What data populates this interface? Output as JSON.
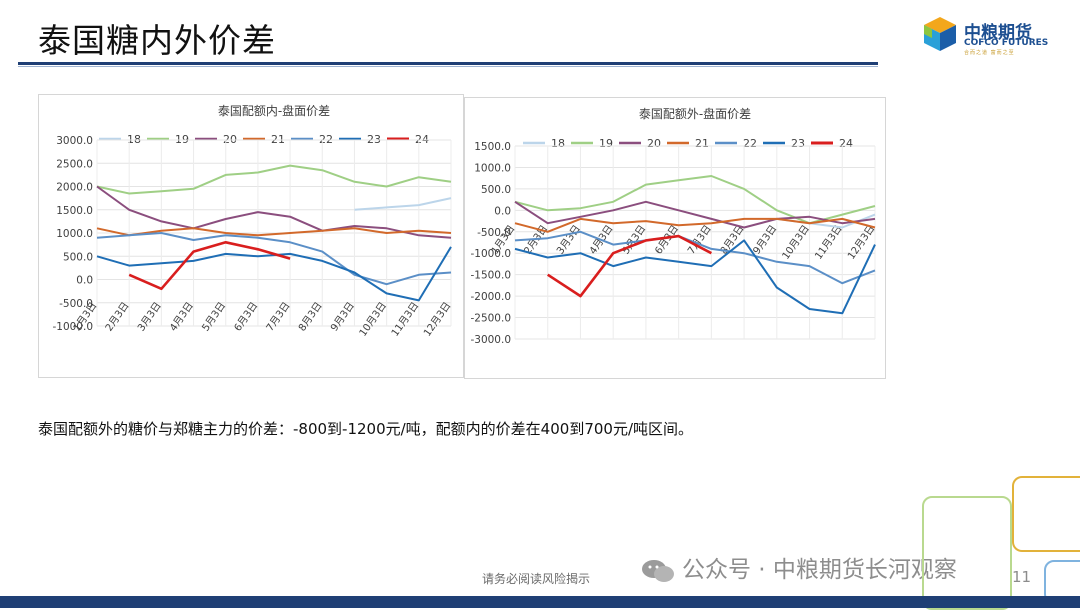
{
  "header": {
    "title": "泰国糖内外价差"
  },
  "logo": {
    "cn": "中粮期货",
    "en": "COFCO FUTURES",
    "slogan": "合而之道 富而之至"
  },
  "charts": [
    {
      "title": "泰国配额内-盘面价差",
      "legend": [
        "18",
        "19",
        "20",
        "21",
        "22",
        "23",
        "24"
      ],
      "y_ticks": [
        "3000.0",
        "2500.0",
        "2000.0",
        "1500.0",
        "1000.0",
        "500.0",
        "0.0",
        "-500.0",
        "-1000.0"
      ],
      "x_ticks": [
        "1月3日",
        "2月3日",
        "3月3日",
        "4月3日",
        "5月3日",
        "6月3日",
        "7月3日",
        "8月3日",
        "9月3日",
        "10月3日",
        "11月3日",
        "12月3日"
      ]
    },
    {
      "title": "泰国配额外-盘面价差",
      "legend": [
        "18",
        "19",
        "20",
        "21",
        "22",
        "23",
        "24"
      ],
      "y_ticks": [
        "1500.0",
        "1000.0",
        "500.0",
        "0.0",
        "-500.0",
        "-1000.0",
        "-1500.0",
        "-2000.0",
        "-2500.0",
        "-3000.0"
      ],
      "x_ticks": [
        "1月3日",
        "2月3日",
        "3月3日",
        "4月3日",
        "5月3日",
        "6月3日",
        "7月3日",
        "8月3日",
        "9月3日",
        "10月3日",
        "11月3日",
        "12月3日"
      ]
    }
  ],
  "chart_data": [
    {
      "type": "line",
      "title": "泰国配额内-盘面价差",
      "x": [
        "1月3日",
        "2月3日",
        "3月3日",
        "4月3日",
        "5月3日",
        "6月3日",
        "7月3日",
        "8月3日",
        "9月3日",
        "10月3日",
        "11月3日",
        "12月3日"
      ],
      "ylim": [
        -1000,
        3000
      ],
      "series": [
        {
          "name": "18",
          "color": "#bcd5ea",
          "values": [
            null,
            null,
            null,
            null,
            null,
            null,
            null,
            null,
            1500,
            1550,
            1600,
            1750
          ]
        },
        {
          "name": "19",
          "color": "#9fcf85",
          "values": [
            2000,
            1850,
            1900,
            1950,
            2250,
            2300,
            2450,
            2350,
            2100,
            2000,
            2200,
            2100
          ]
        },
        {
          "name": "20",
          "color": "#8b4e7e",
          "values": [
            2000,
            1500,
            1250,
            1100,
            1300,
            1450,
            1350,
            1050,
            1150,
            1100,
            950,
            900
          ]
        },
        {
          "name": "21",
          "color": "#d2692b",
          "values": [
            1100,
            950,
            1050,
            1100,
            1000,
            950,
            1000,
            1050,
            1100,
            1000,
            1050,
            1000
          ]
        },
        {
          "name": "22",
          "color": "#5b8fc7",
          "values": [
            900,
            950,
            1000,
            850,
            950,
            900,
            800,
            600,
            100,
            -100,
            100,
            150
          ]
        },
        {
          "name": "23",
          "color": "#1f6eb5",
          "values": [
            500,
            300,
            350,
            400,
            550,
            500,
            550,
            400,
            150,
            -300,
            -450,
            700
          ]
        },
        {
          "name": "24",
          "color": "#d91e1e",
          "values": [
            null,
            100,
            -200,
            600,
            800,
            650,
            450,
            null,
            null,
            null,
            null,
            null
          ]
        }
      ]
    },
    {
      "type": "line",
      "title": "泰国配额外-盘面价差",
      "x": [
        "1月3日",
        "2月3日",
        "3月3日",
        "4月3日",
        "5月3日",
        "6月3日",
        "7月3日",
        "8月3日",
        "9月3日",
        "10月3日",
        "11月3日",
        "12月3日"
      ],
      "ylim": [
        -3000,
        1500
      ],
      "series": [
        {
          "name": "18",
          "color": "#bcd5ea",
          "values": [
            null,
            null,
            null,
            null,
            null,
            null,
            null,
            null,
            -200,
            -300,
            -400,
            -100
          ]
        },
        {
          "name": "19",
          "color": "#9fcf85",
          "values": [
            200,
            0,
            50,
            200,
            600,
            700,
            800,
            500,
            0,
            -300,
            -100,
            100
          ]
        },
        {
          "name": "20",
          "color": "#8b4e7e",
          "values": [
            200,
            -300,
            -150,
            0,
            200,
            0,
            -200,
            -400,
            -200,
            -150,
            -300,
            -200
          ]
        },
        {
          "name": "21",
          "color": "#d2692b",
          "values": [
            -300,
            -500,
            -200,
            -300,
            -250,
            -350,
            -300,
            -200,
            -200,
            -300,
            -200,
            -400
          ]
        },
        {
          "name": "22",
          "color": "#5b8fc7",
          "values": [
            -700,
            -650,
            -500,
            -800,
            -700,
            -600,
            -900,
            -1000,
            -1200,
            -1300,
            -1700,
            -1400
          ]
        },
        {
          "name": "23",
          "color": "#1f6eb5",
          "values": [
            -900,
            -1100,
            -1000,
            -1300,
            -1100,
            -1200,
            -1300,
            -700,
            -1800,
            -2300,
            -2400,
            -800
          ]
        },
        {
          "name": "24",
          "color": "#d91e1e",
          "values": [
            null,
            -1500,
            -2000,
            -1000,
            -700,
            -600,
            -1000,
            null,
            null,
            null,
            null,
            null
          ]
        }
      ]
    }
  ],
  "caption": "泰国配额外的糖价与郑糖主力的价差：-800到-1200元/吨，配额内的价差在400到700元/吨区间。",
  "footer": {
    "risk_note": "请务必阅读风险揭示",
    "page_number": "11"
  },
  "watermark": {
    "text": "公众号 · 中粮期货长河观察"
  }
}
